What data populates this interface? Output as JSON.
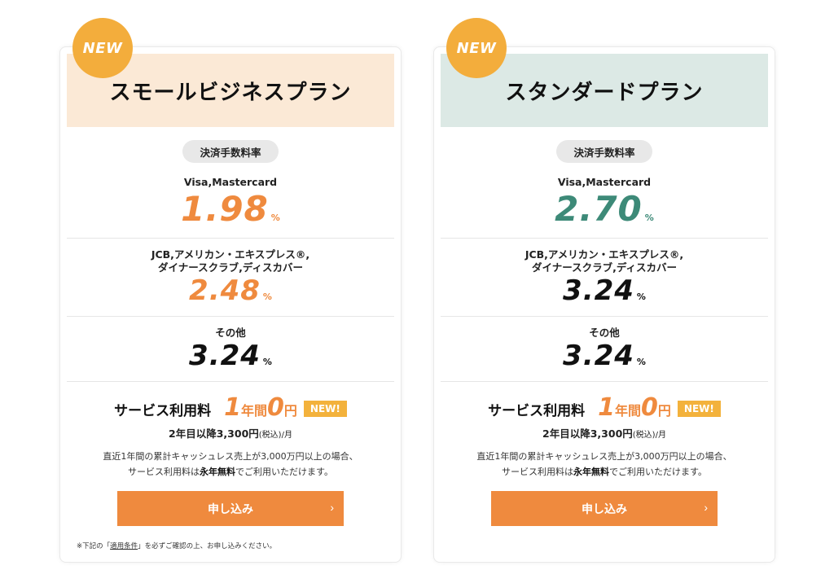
{
  "colors": {
    "accent_orange": "#ef8a3e",
    "accent_teal": "#3d8a78",
    "badge": "#f3ad3c"
  },
  "plans": [
    {
      "badge": "NEW",
      "title": "スモールビジネスプラン",
      "fee_label": "決済手数料率",
      "rates": [
        {
          "brand_line1": "Visa,Mastercard",
          "brand_line2": "",
          "value": "1.98",
          "unit": "%"
        },
        {
          "brand_line1": "JCB,アメリカン・エキスプレス®,",
          "brand_line2": "ダイナースクラブ,ディスカバー",
          "value": "2.48",
          "unit": "%"
        },
        {
          "brand_line1": "その他",
          "brand_line2": "",
          "value": "3.24",
          "unit": "%"
        }
      ],
      "service": {
        "label": "サービス利用料",
        "num1": "1",
        "unit1": "年間",
        "num2": "0",
        "unit2": "円",
        "new_tag": "NEW!",
        "after_main": "2年目以降3,300円",
        "after_tax": "(税込)",
        "after_per": "/月",
        "note1": "直近1年間の累計キャッシュレス売上が3,000万円以上の場合、",
        "note2a": "サービス利用料は",
        "note2b": "永年無料",
        "note2c": "でご利用いただけます。"
      },
      "apply_label": "申し込み",
      "footnote_a": "※下記の「",
      "footnote_link": "適用条件",
      "footnote_b": "」を必ずご確認の上、お申し込みください。"
    },
    {
      "badge": "NEW",
      "title": "スタンダードプラン",
      "fee_label": "決済手数料率",
      "rates": [
        {
          "brand_line1": "Visa,Mastercard",
          "brand_line2": "",
          "value": "2.70",
          "unit": "%"
        },
        {
          "brand_line1": "JCB,アメリカン・エキスプレス®,",
          "brand_line2": "ダイナースクラブ,ディスカバー",
          "value": "3.24",
          "unit": "%"
        },
        {
          "brand_line1": "その他",
          "brand_line2": "",
          "value": "3.24",
          "unit": "%"
        }
      ],
      "service": {
        "label": "サービス利用料",
        "num1": "1",
        "unit1": "年間",
        "num2": "0",
        "unit2": "円",
        "new_tag": "NEW!",
        "after_main": "2年目以降3,300円",
        "after_tax": "(税込)",
        "after_per": "/月",
        "note1": "直近1年間の累計キャッシュレス売上が3,000万円以上の場合、",
        "note2a": "サービス利用料は",
        "note2b": "永年無料",
        "note2c": "でご利用いただけます。"
      },
      "apply_label": "申し込み"
    }
  ]
}
